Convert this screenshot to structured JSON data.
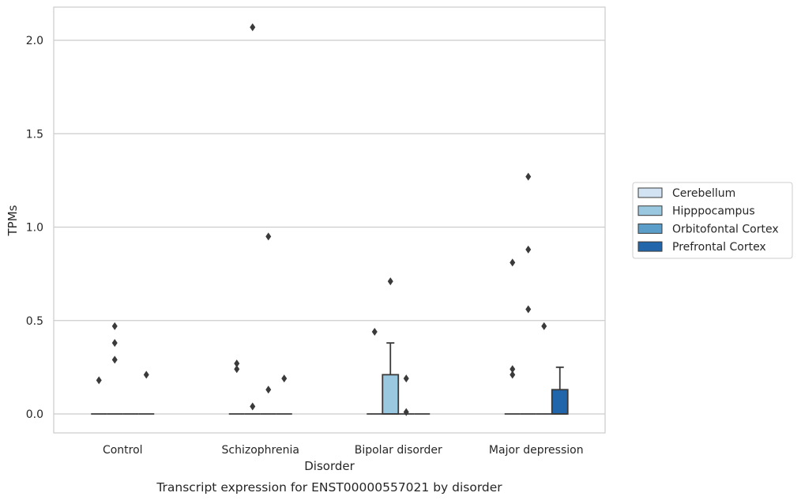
{
  "chart_data": {
    "type": "box",
    "caption": "Transcript expression for ENST00000557021 by disorder",
    "xlabel": "Disorder",
    "ylabel": "TPMs",
    "ylim": [
      -0.1,
      2.18
    ],
    "yticks": [
      0.0,
      0.5,
      1.0,
      1.5,
      2.0
    ],
    "ytick_labels": [
      "0.0",
      "0.5",
      "1.0",
      "1.5",
      "2.0"
    ],
    "grid": "horizontal",
    "legend_position": "right",
    "categories": [
      "Control",
      "Schizophrenia",
      "Bipolar disorder",
      "Major depression"
    ],
    "series": [
      {
        "name": "Cerebellum",
        "color": "#d2e3f3",
        "boxes": [
          {
            "q1": 0,
            "median": 0,
            "q3": 0,
            "whisker_low": 0,
            "whisker_high": 0,
            "outliers": [
              0.18
            ]
          },
          {
            "q1": 0,
            "median": 0,
            "q3": 0,
            "whisker_low": 0,
            "whisker_high": 0,
            "outliers": [
              0.27,
              0.24
            ]
          },
          {
            "q1": 0,
            "median": 0,
            "q3": 0,
            "whisker_low": 0,
            "whisker_high": 0,
            "outliers": [
              0.44
            ]
          },
          {
            "q1": 0,
            "median": 0,
            "q3": 0,
            "whisker_low": 0,
            "whisker_high": 0,
            "outliers": [
              0.81,
              0.24,
              0.21
            ]
          }
        ]
      },
      {
        "name": "Hipppocampus",
        "color": "#9ac8e0",
        "boxes": [
          {
            "q1": 0,
            "median": 0,
            "q3": 0,
            "whisker_low": 0,
            "whisker_high": 0,
            "outliers": [
              0.47,
              0.38,
              0.29
            ]
          },
          {
            "q1": 0,
            "median": 0,
            "q3": 0,
            "whisker_low": 0,
            "whisker_high": 0,
            "outliers": [
              2.07,
              0.04
            ]
          },
          {
            "q1": 0,
            "median": 0,
            "q3": 0.21,
            "whisker_low": 0,
            "whisker_high": 0.38,
            "outliers": [
              0.71
            ]
          },
          {
            "q1": 0,
            "median": 0,
            "q3": 0,
            "whisker_low": 0,
            "whisker_high": 0,
            "outliers": [
              1.27,
              0.88,
              0.56
            ]
          }
        ]
      },
      {
        "name": "Orbitofontal Cortex",
        "color": "#5a9ec9",
        "boxes": [
          {
            "q1": 0,
            "median": 0,
            "q3": 0,
            "whisker_low": 0,
            "whisker_high": 0,
            "outliers": []
          },
          {
            "q1": 0,
            "median": 0,
            "q3": 0,
            "whisker_low": 0,
            "whisker_high": 0,
            "outliers": [
              0.95,
              0.13
            ]
          },
          {
            "q1": 0,
            "median": 0,
            "q3": 0,
            "whisker_low": 0,
            "whisker_high": 0,
            "outliers": [
              0.19,
              0.01
            ]
          },
          {
            "q1": 0,
            "median": 0,
            "q3": 0,
            "whisker_low": 0,
            "whisker_high": 0,
            "outliers": [
              0.47
            ]
          }
        ]
      },
      {
        "name": "Prefrontal Cortex",
        "color": "#2165ab",
        "boxes": [
          {
            "q1": 0,
            "median": 0,
            "q3": 0,
            "whisker_low": 0,
            "whisker_high": 0,
            "outliers": [
              0.21
            ]
          },
          {
            "q1": 0,
            "median": 0,
            "q3": 0,
            "whisker_low": 0,
            "whisker_high": 0,
            "outliers": [
              0.19
            ]
          },
          {
            "q1": 0,
            "median": 0,
            "q3": 0,
            "whisker_low": 0,
            "whisker_high": 0,
            "outliers": []
          },
          {
            "q1": 0,
            "median": 0,
            "q3": 0.13,
            "whisker_low": 0,
            "whisker_high": 0.25,
            "outliers": []
          }
        ]
      }
    ]
  }
}
